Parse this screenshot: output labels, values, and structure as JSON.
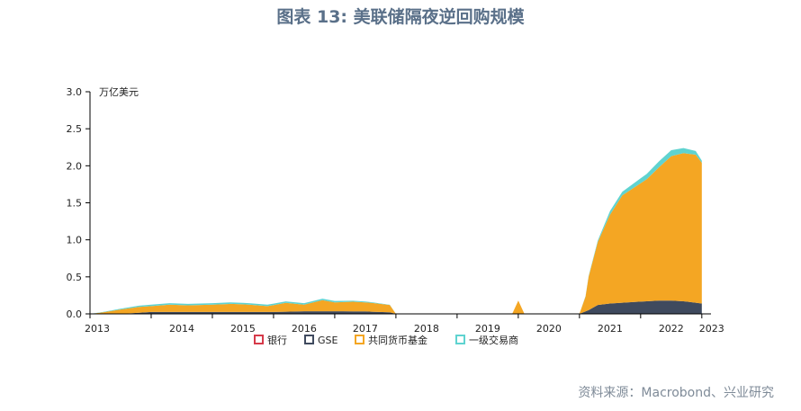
{
  "title": "图表 13: 美联储隔夜逆回购规模",
  "source": "资料来源：Macrobond、兴业研究",
  "chart_data": {
    "type": "area",
    "stacked": true,
    "unit_label": "万亿美元",
    "ylim": [
      0,
      3.0
    ],
    "y_ticks": [
      "0.0",
      "0.5",
      "1.0",
      "1.5",
      "2.0",
      "2.5",
      "3.0"
    ],
    "x_ticks": [
      "2013",
      "2014",
      "2015",
      "2016",
      "2017",
      "2018",
      "2019",
      "2020",
      "2021",
      "2022",
      "2023"
    ],
    "x_range": [
      2013.0,
      2023.15
    ],
    "legend_position": "bottom",
    "colors": {
      "banks": "#d63a4a",
      "gse": "#3f4a5e",
      "mmf": "#f4a623",
      "dealers": "#5fd3d0"
    },
    "series": [
      {
        "name": "银行",
        "color": "#d63a4a",
        "x": [
          2013.0,
          2013.5,
          2014.0,
          2015.0,
          2016.0,
          2017.0,
          2018.0,
          2021.0,
          2022.0,
          2023.0
        ],
        "values": [
          0,
          0,
          0.005,
          0.005,
          0.005,
          0.005,
          0,
          0,
          0,
          0
        ]
      },
      {
        "name": "GSE",
        "color": "#3f4a5e",
        "x": [
          2013.0,
          2013.5,
          2014.0,
          2014.5,
          2015.0,
          2015.5,
          2016.0,
          2016.5,
          2017.0,
          2017.5,
          2017.9,
          2018.0,
          2021.0,
          2021.15,
          2021.3,
          2021.5,
          2021.7,
          2021.9,
          2022.1,
          2022.3,
          2022.5,
          2022.7,
          2022.9,
          2023.0
        ],
        "values": [
          0,
          0,
          0.02,
          0.02,
          0.02,
          0.02,
          0.02,
          0.03,
          0.03,
          0.03,
          0.02,
          0,
          0,
          0.05,
          0.12,
          0.14,
          0.15,
          0.16,
          0.17,
          0.18,
          0.18,
          0.17,
          0.15,
          0.14
        ]
      },
      {
        "name": "共同货币基金",
        "color": "#f4a623",
        "x": [
          2013.0,
          2013.2,
          2013.5,
          2013.8,
          2014.0,
          2014.3,
          2014.6,
          2015.0,
          2015.3,
          2015.6,
          2015.9,
          2016.2,
          2016.5,
          2016.8,
          2017.0,
          2017.3,
          2017.6,
          2017.9,
          2018.0,
          2019.9,
          2020.0,
          2020.1,
          2021.0,
          2021.1,
          2021.15,
          2021.3,
          2021.5,
          2021.7,
          2021.9,
          2022.1,
          2022.3,
          2022.5,
          2022.7,
          2022.9,
          2023.0
        ],
        "values": [
          0,
          0.02,
          0.06,
          0.08,
          0.08,
          0.1,
          0.09,
          0.1,
          0.11,
          0.1,
          0.08,
          0.12,
          0.09,
          0.15,
          0.12,
          0.13,
          0.12,
          0.1,
          0,
          0,
          0.18,
          0,
          0,
          0.2,
          0.45,
          0.85,
          1.2,
          1.45,
          1.55,
          1.65,
          1.8,
          1.95,
          2.0,
          2.0,
          1.9
        ]
      },
      {
        "name": "一级交易商",
        "color": "#5fd3d0",
        "x": [
          2013.0,
          2014.0,
          2015.0,
          2016.0,
          2017.0,
          2018.0,
          2021.0,
          2021.3,
          2021.5,
          2021.7,
          2021.9,
          2022.1,
          2022.3,
          2022.5,
          2022.7,
          2022.9,
          2023.0
        ],
        "values": [
          0,
          0.02,
          0.02,
          0.02,
          0.02,
          0,
          0,
          0.02,
          0.05,
          0.05,
          0.06,
          0.07,
          0.08,
          0.08,
          0.07,
          0.05,
          0.03
        ]
      }
    ]
  }
}
